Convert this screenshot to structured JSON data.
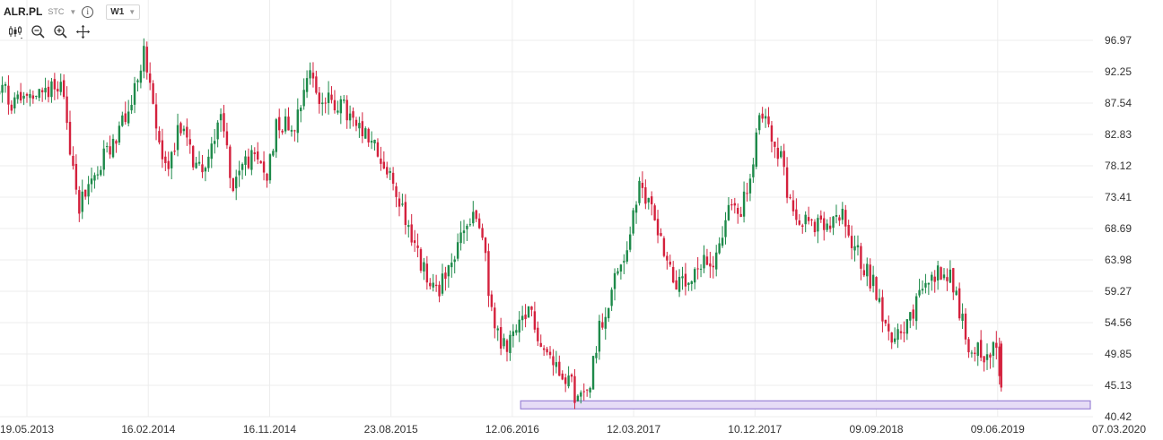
{
  "header": {
    "symbol": "ALR.PL",
    "exchange": "STC",
    "timeframe": "W1"
  },
  "tools": [
    "chart-type-icon",
    "zoom-out-icon",
    "zoom-in-icon",
    "move-icon"
  ],
  "colors": {
    "up": "#1e8a4a",
    "down": "#d4213d",
    "grid": "#ececec",
    "highlight_fill": "#e6dcf6",
    "highlight_stroke": "#9b84d6"
  },
  "chart_data": {
    "type": "candlestick",
    "y_ticks": [
      "96.97",
      "92.25",
      "87.54",
      "82.83",
      "78.12",
      "73.41",
      "68.69",
      "63.98",
      "59.27",
      "54.56",
      "49.85",
      "45.13",
      "40.42"
    ],
    "x_ticks": [
      "19.05.2013",
      "16.02.2014",
      "16.11.2014",
      "23.08.2015",
      "12.06.2016",
      "12.03.2017",
      "10.12.2017",
      "09.09.2018",
      "09.06.2019",
      "07.03.2020"
    ],
    "ylim": [
      40.42,
      96.97
    ],
    "xlim": [
      "2013-05-19",
      "2020-03-07"
    ],
    "grid": true,
    "closes": [
      [
        "2013-05-19",
        88.0
      ],
      [
        "2013-08-01",
        91.0
      ],
      [
        "2013-09-15",
        72.5
      ],
      [
        "2013-10-20",
        76.5
      ],
      [
        "2013-11-20",
        80.5
      ],
      [
        "2014-01-05",
        86.0
      ],
      [
        "2014-02-09",
        95.5
      ],
      [
        "2014-03-01",
        86.5
      ],
      [
        "2014-04-01",
        77.0
      ],
      [
        "2014-05-01",
        84.5
      ],
      [
        "2014-06-01",
        79.0
      ],
      [
        "2014-07-01",
        77.5
      ],
      [
        "2014-08-01",
        87.0
      ],
      [
        "2014-09-01",
        74.5
      ],
      [
        "2014-10-01",
        79.5
      ],
      [
        "2014-11-16",
        77.0
      ],
      [
        "2014-12-10",
        85.0
      ],
      [
        "2015-01-15",
        84.0
      ],
      [
        "2015-02-20",
        93.0
      ],
      [
        "2015-03-15",
        88.0
      ],
      [
        "2015-05-01",
        87.5
      ],
      [
        "2015-06-15",
        83.0
      ],
      [
        "2015-07-15",
        81.5
      ],
      [
        "2015-08-23",
        76.0
      ],
      [
        "2015-09-20",
        72.0
      ],
      [
        "2015-10-25",
        64.5
      ],
      [
        "2015-11-30",
        59.0
      ],
      [
        "2016-01-05",
        62.0
      ],
      [
        "2016-02-05",
        68.5
      ],
      [
        "2016-03-01",
        70.0
      ],
      [
        "2016-03-20",
        67.5
      ],
      [
        "2016-04-10",
        56.0
      ],
      [
        "2016-05-01",
        50.5
      ],
      [
        "2016-06-12",
        53.5
      ],
      [
        "2016-07-10",
        56.5
      ],
      [
        "2016-08-01",
        51.0
      ],
      [
        "2016-09-01",
        48.5
      ],
      [
        "2016-10-01",
        46.5
      ],
      [
        "2016-10-25",
        42.5
      ],
      [
        "2016-11-15",
        44.5
      ],
      [
        "2016-12-10",
        53.5
      ],
      [
        "2017-01-10",
        60.0
      ],
      [
        "2017-02-10",
        65.5
      ],
      [
        "2017-03-12",
        74.5
      ],
      [
        "2017-04-10",
        72.0
      ],
      [
        "2017-05-05",
        66.0
      ],
      [
        "2017-06-01",
        60.5
      ],
      [
        "2017-07-01",
        59.5
      ],
      [
        "2017-08-01",
        63.0
      ],
      [
        "2017-09-01",
        64.5
      ],
      [
        "2017-10-01",
        71.5
      ],
      [
        "2017-11-01",
        72.0
      ],
      [
        "2017-11-25",
        77.5
      ],
      [
        "2017-12-10",
        85.5
      ],
      [
        "2018-01-01",
        84.0
      ],
      [
        "2018-01-25",
        80.0
      ],
      [
        "2018-02-15",
        73.0
      ],
      [
        "2018-03-15",
        70.5
      ],
      [
        "2018-04-15",
        69.0
      ],
      [
        "2018-05-15",
        68.5
      ],
      [
        "2018-06-15",
        70.5
      ],
      [
        "2018-07-10",
        66.5
      ],
      [
        "2018-08-05",
        63.0
      ],
      [
        "2018-09-09",
        58.5
      ],
      [
        "2018-10-01",
        51.5
      ],
      [
        "2018-10-25",
        54.0
      ],
      [
        "2018-11-20",
        55.0
      ],
      [
        "2018-12-15",
        59.5
      ],
      [
        "2019-01-10",
        61.5
      ],
      [
        "2019-02-05",
        63.0
      ],
      [
        "2019-03-01",
        59.5
      ],
      [
        "2019-03-25",
        52.0
      ],
      [
        "2019-04-20",
        50.5
      ],
      [
        "2019-05-10",
        49.5
      ],
      [
        "2019-06-02",
        51.5
      ],
      [
        "2019-06-09",
        45.0
      ]
    ]
  }
}
